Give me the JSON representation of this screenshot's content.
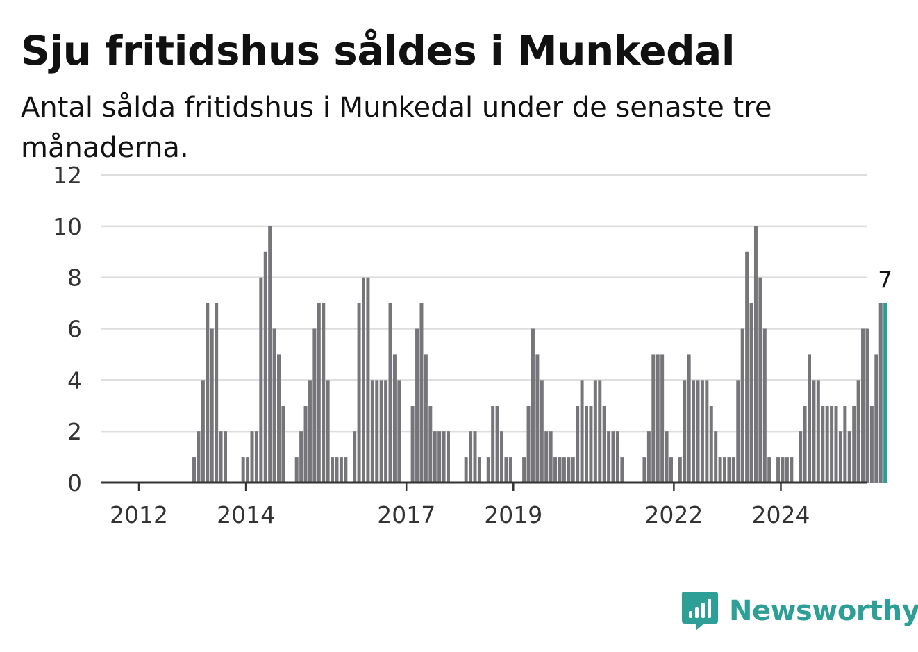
{
  "title": "Sju fritidshus såldes i Munkedal",
  "subtitle": "Antal sålda fritidshus i Munkedal under de senaste tre månaderna.",
  "brand": "Newsworthy",
  "colors": {
    "bar": "#76767a",
    "highlight": "#2a9d95",
    "grid": "#dddddd",
    "axis": "#333333",
    "brand": "#2e9f96"
  },
  "chart_data": {
    "type": "bar",
    "title": "Sju fritidshus såldes i Munkedal",
    "subtitle": "Antal sålda fritidshus i Munkedal under de senaste tre månaderna.",
    "xlabel": "",
    "ylabel": "",
    "ylim": [
      0,
      12
    ],
    "y_ticks": [
      0,
      2,
      4,
      6,
      8,
      10,
      12
    ],
    "x_ticks": [
      "2012",
      "2014",
      "2017",
      "2019",
      "2022",
      "2024"
    ],
    "grid": true,
    "legend": "none",
    "data_label": "7",
    "values": [
      0,
      0,
      0,
      0,
      0,
      0,
      0,
      0,
      0,
      0,
      0,
      0,
      1,
      2,
      4,
      7,
      6,
      7,
      2,
      2,
      0,
      0,
      0,
      1,
      1,
      2,
      2,
      8,
      9,
      10,
      6,
      5,
      3,
      0,
      0,
      1,
      2,
      3,
      4,
      6,
      7,
      7,
      4,
      1,
      1,
      1,
      1,
      0,
      2,
      7,
      8,
      8,
      4,
      4,
      4,
      4,
      7,
      5,
      4,
      0,
      0,
      3,
      6,
      7,
      5,
      3,
      2,
      2,
      2,
      2,
      0,
      0,
      0,
      1,
      2,
      2,
      1,
      0,
      1,
      3,
      3,
      2,
      1,
      1,
      0,
      0,
      1,
      3,
      6,
      5,
      4,
      2,
      2,
      1,
      1,
      1,
      1,
      1,
      3,
      4,
      3,
      3,
      4,
      4,
      3,
      2,
      2,
      2,
      1,
      0,
      0,
      0,
      0,
      1,
      2,
      5,
      5,
      5,
      2,
      1,
      0,
      1,
      4,
      5,
      4,
      4,
      4,
      4,
      3,
      2,
      1,
      1,
      1,
      1,
      4,
      6,
      9,
      7,
      10,
      8,
      6,
      1,
      0,
      1,
      1,
      1,
      1,
      0,
      2,
      3,
      5,
      4,
      4,
      3,
      3,
      3,
      3,
      2,
      3,
      2,
      3,
      4,
      6,
      6,
      3,
      5,
      7,
      7
    ]
  }
}
